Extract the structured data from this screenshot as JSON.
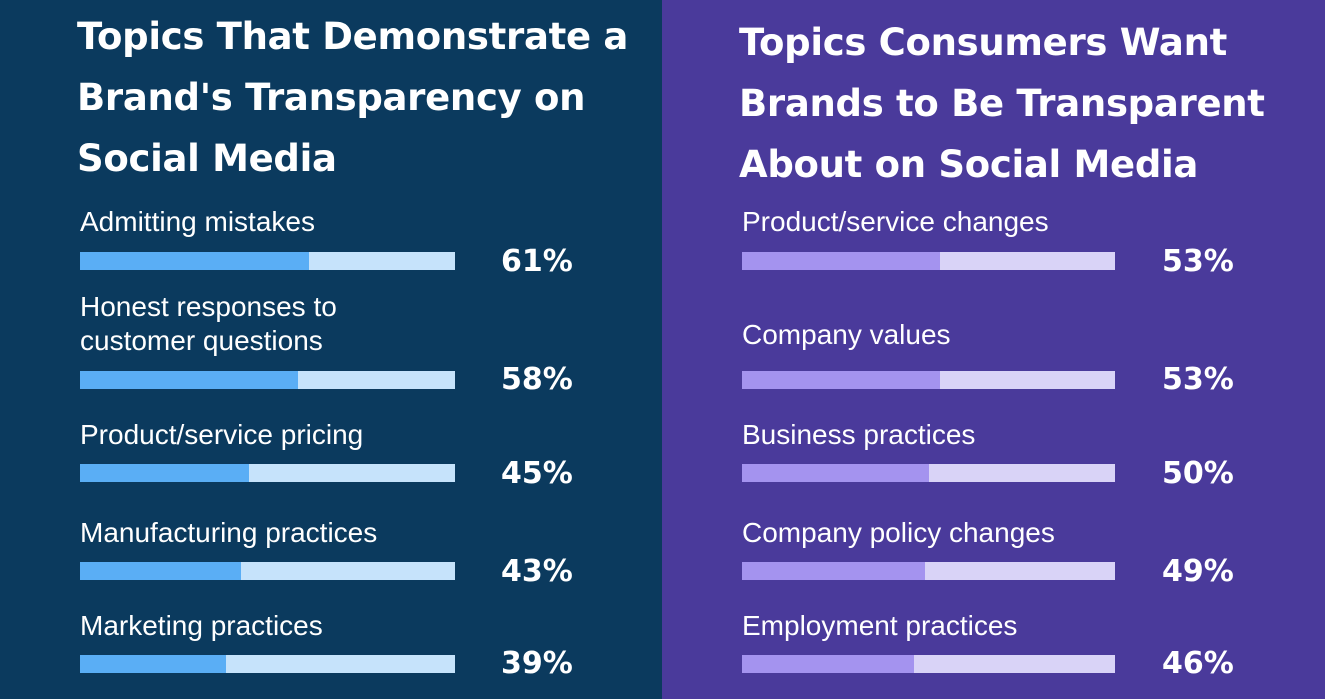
{
  "chart_data": [
    {
      "type": "bar",
      "orientation": "horizontal",
      "title": "Topics That Demonstrate a Brand's Transparency on Social Media",
      "categories": [
        "Admitting mistakes",
        "Honest responses to customer questions",
        "Product/service pricing",
        "Manufacturing practices",
        "Marketing practices"
      ],
      "label_lines": [
        [
          "Admitting mistakes"
        ],
        [
          "Honest responses to",
          "customer questions"
        ],
        [
          "Product/service pricing"
        ],
        [
          "Manufacturing practices"
        ],
        [
          "Marketing practices"
        ]
      ],
      "values": [
        61,
        58,
        45,
        43,
        39
      ],
      "value_labels": [
        "61%",
        "58%",
        "45%",
        "43%",
        "39%"
      ],
      "xlim": [
        0,
        100
      ],
      "colors": {
        "background": "#0b3a5e",
        "fill": "#5aaef5",
        "track": "#c6e3fb"
      }
    },
    {
      "type": "bar",
      "orientation": "horizontal",
      "title": "Topics Consumers Want Brands to Be Transparent About on Social Media",
      "categories": [
        "Product/service changes",
        "Company values",
        "Business practices",
        "Company policy changes",
        "Employment practices"
      ],
      "label_lines": [
        [
          "Product/service changes"
        ],
        [
          "Company values"
        ],
        [
          "Business practices"
        ],
        [
          "Company policy changes"
        ],
        [
          "Employment practices"
        ]
      ],
      "values": [
        53,
        53,
        50,
        49,
        46
      ],
      "value_labels": [
        "53%",
        "53%",
        "50%",
        "49%",
        "46%"
      ],
      "xlim": [
        0,
        100
      ],
      "colors": {
        "background": "#4a3a9b",
        "fill": "#a493ef",
        "track": "#d9d3f7"
      }
    }
  ]
}
